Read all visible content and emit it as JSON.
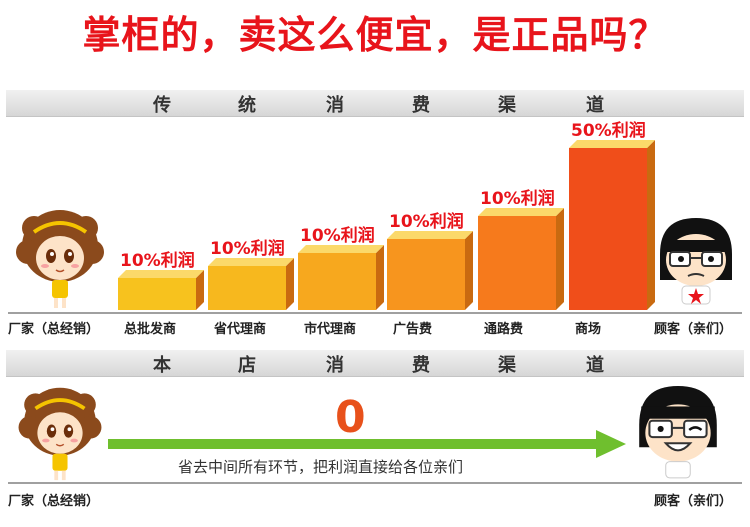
{
  "headline": "掌柜的，卖这么便宜，是正品吗？",
  "traditional": {
    "band_chars": [
      "传",
      "统",
      "消",
      "费",
      "渠",
      "道"
    ],
    "tiers": [
      {
        "name": "总批发商",
        "profit": "10%利润",
        "level": 0.2
      },
      {
        "name": "省代理商",
        "profit": "10%利润",
        "level": 0.27
      },
      {
        "name": "市代理商",
        "profit": "10%利润",
        "level": 0.35
      },
      {
        "name": "广告费",
        "profit": "10%利润",
        "level": 0.44
      },
      {
        "name": "通路费",
        "profit": "10%利润",
        "level": 0.58
      },
      {
        "name": "商场",
        "profit": "50%利润",
        "level": 1.0
      }
    ],
    "maker": "厂家（总经销）",
    "customer": "顾客（亲们）"
  },
  "store": {
    "band_chars": [
      "本",
      "店",
      "消",
      "费",
      "渠",
      "道"
    ],
    "middleman_count": "0",
    "arrow_caption": "省去中间所有环节，把利润直接给各位亲们",
    "maker": "厂家（总经销）",
    "customer": "顾客（亲们）"
  },
  "colors": {
    "headline": "#e8141b",
    "arrow": "#6fbf2e",
    "bar_orange": "#f7931e",
    "bar_red": "#f04e1a"
  }
}
